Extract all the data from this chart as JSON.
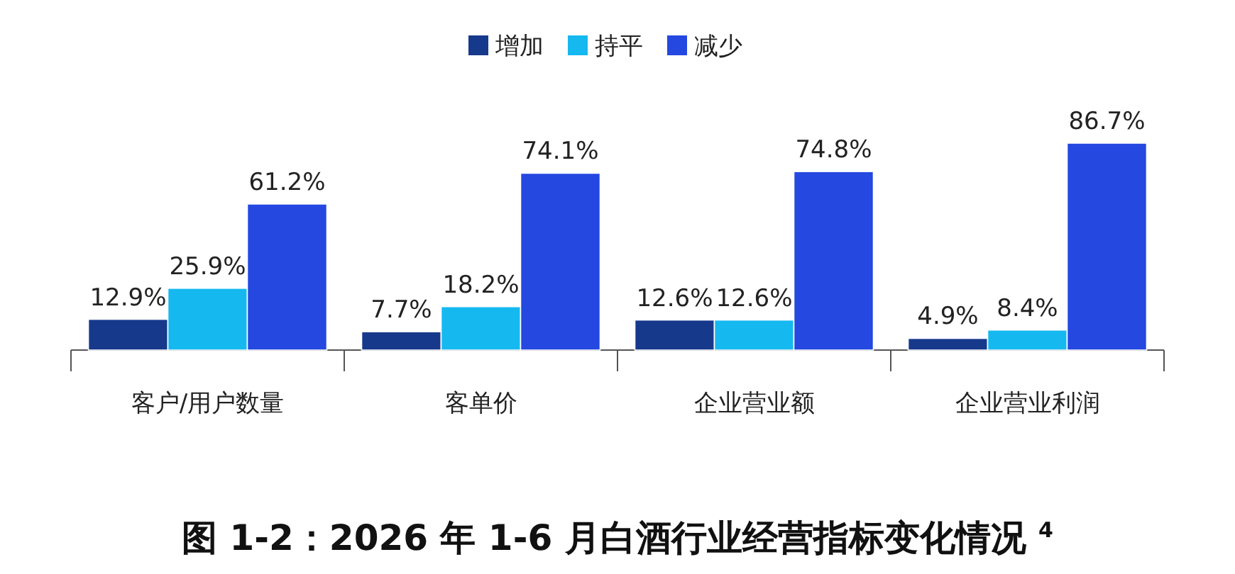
{
  "chart_data": {
    "type": "bar",
    "title": "图 1-2：2026 年 1-6 月白酒行业经营指标变化情况 $^{4}$",
    "categories": [
      "客户/用户数量",
      "客单价",
      "企业营业额",
      "企业营业利润"
    ],
    "series": [
      {
        "name": "增加",
        "color": "#17398c",
        "values": [
          12.9,
          7.7,
          12.6,
          4.9
        ],
        "value_labels": [
          "12.9%",
          "7.7%",
          "12.6%",
          "4.9%"
        ]
      },
      {
        "name": "持平",
        "color": "#16b8f0",
        "values": [
          25.9,
          18.2,
          12.6,
          8.4
        ],
        "value_labels": [
          "25.9%",
          "18.2%",
          "12.6%",
          "8.4%"
        ]
      },
      {
        "name": "减少",
        "color": "#2448e0",
        "values": [
          61.2,
          74.1,
          74.8,
          86.7
        ],
        "value_labels": [
          "61.2%",
          "74.1%",
          "74.8%",
          "86.7%"
        ]
      }
    ],
    "legend": "top"
  }
}
